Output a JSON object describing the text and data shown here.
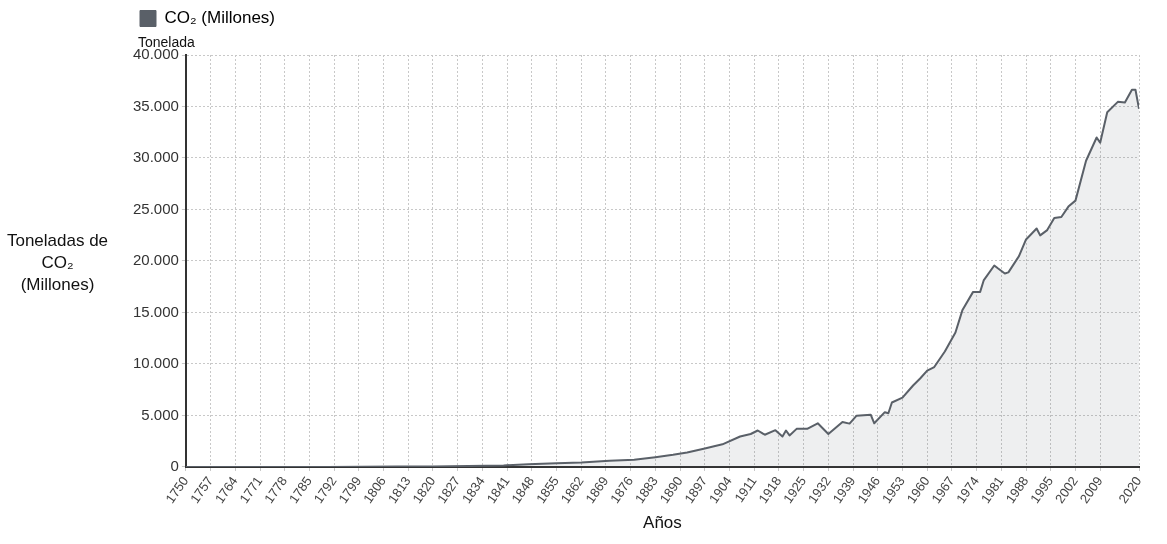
{
  "chart_data": {
    "type": "area",
    "xlabel": "Años",
    "ylabel": "Toneladas de CO₂ (Millones)",
    "annotations": [
      "Tonelada"
    ],
    "xlim": [
      1750,
      2020
    ],
    "xticks": [
      1750,
      1757,
      1764,
      1771,
      1778,
      1785,
      1792,
      1799,
      1806,
      1813,
      1820,
      1827,
      1834,
      1841,
      1848,
      1855,
      1862,
      1869,
      1876,
      1883,
      1890,
      1897,
      1904,
      1911,
      1918,
      1925,
      1932,
      1939,
      1946,
      1953,
      1960,
      1967,
      1974,
      1981,
      1988,
      1995,
      2002,
      2009,
      2020
    ],
    "ylim": [
      0,
      40000
    ],
    "yticks": [
      0,
      {
        "value": 5000,
        "label": "5.000"
      },
      {
        "value": 10000,
        "label": "10.000"
      },
      {
        "value": 15000,
        "label": "15.000"
      },
      {
        "value": 20000,
        "label": "20.000"
      },
      {
        "value": 25000,
        "label": "25.000"
      },
      {
        "value": 30000,
        "label": "30.000"
      },
      {
        "value": 35000,
        "label": "35.000"
      },
      {
        "value": 40000,
        "label": "40.000"
      }
    ],
    "grid": true,
    "legend": "top left",
    "series": [
      {
        "name": "CO₂ (Millones)",
        "color": "#5a6068",
        "x": [
          1750,
          1760,
          1770,
          1780,
          1790,
          1800,
          1810,
          1820,
          1830,
          1840,
          1847,
          1855,
          1862,
          1870,
          1877,
          1883,
          1888,
          1892,
          1897,
          1902,
          1907,
          1910,
          1912,
          1914,
          1917,
          1919,
          1920,
          1921,
          1923,
          1926,
          1929,
          1932,
          1936,
          1938,
          1940,
          1944,
          1945,
          1948,
          1949,
          1950,
          1953,
          1956,
          1958,
          1960,
          1962,
          1965,
          1968,
          1970,
          1973,
          1975,
          1976,
          1979,
          1980,
          1982,
          1983,
          1986,
          1988,
          1991,
          1992,
          1994,
          1996,
          1998,
          2000,
          2002,
          2005,
          2008,
          2009,
          2011,
          2014,
          2016,
          2018,
          2019,
          2020
        ],
        "values": [
          0,
          0,
          0,
          0,
          0,
          30,
          40,
          50,
          90,
          150,
          270,
          350,
          430,
          600,
          700,
          950,
          1180,
          1400,
          1790,
          2200,
          2960,
          3200,
          3540,
          3130,
          3570,
          2960,
          3540,
          3060,
          3700,
          3700,
          4240,
          3200,
          4370,
          4210,
          4980,
          5080,
          4240,
          5320,
          5220,
          6260,
          6730,
          7910,
          8590,
          9360,
          9700,
          11210,
          13060,
          15250,
          17000,
          17000,
          18110,
          19560,
          19290,
          18790,
          18890,
          20470,
          22090,
          23160,
          22490,
          23000,
          24170,
          24270,
          25280,
          25860,
          29730,
          31990,
          31480,
          34440,
          35450,
          35380,
          36630,
          36630,
          34780
        ]
      }
    ]
  }
}
